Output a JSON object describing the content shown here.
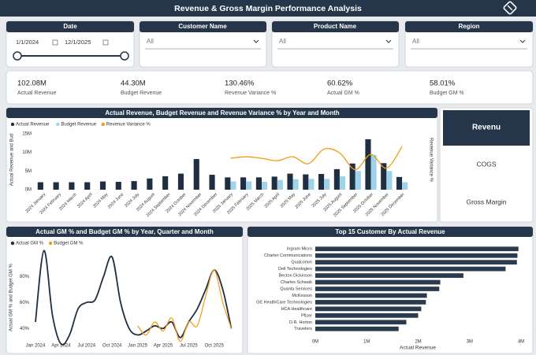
{
  "header": {
    "title": "Revenue & Gross Margin Performance Analysis"
  },
  "filters": [
    {
      "title": "Date",
      "from": "1/1/2024",
      "to": "12/1/2025"
    },
    {
      "title": "Customer Name",
      "value": "All"
    },
    {
      "title": "Product Name",
      "value": "All"
    },
    {
      "title": "Region",
      "value": "All"
    }
  ],
  "kpis": [
    {
      "value": "102.08M",
      "label": "Actual Revenue"
    },
    {
      "value": "44.30M",
      "label": "Budget Revenue"
    },
    {
      "value": "130.46%",
      "label": "Revenue Variance %"
    },
    {
      "value": "60.62%",
      "label": "Actual GM %"
    },
    {
      "value": "58.01%",
      "label": "Budget GM %"
    }
  ],
  "buttons": [
    "Revenu",
    "COGS",
    "Gross Margin"
  ],
  "chart_data": [
    {
      "type": "combo",
      "title": "Actual Revenue, Budget Revenue and Revenue Variance % by Year and Month",
      "y_label": "Actual Revenue and Bud",
      "y2_label": "Revenue Variance %",
      "categories": [
        "2024 January",
        "2024 February",
        "2024 March",
        "2024 April",
        "2024 May",
        "2024 June",
        "2024 July",
        "2024 August",
        "2024 September",
        "2024 October",
        "2024 November",
        "2024 December",
        "2025 January",
        "2025 February",
        "2025 March",
        "2025 April",
        "2025 May",
        "2025 June",
        "2025 July",
        "2025 August",
        "2025 September",
        "2025 October",
        "2025 November",
        "2025 December"
      ],
      "ylim": [
        0,
        16000000
      ],
      "yticks": [
        {
          "value": 0,
          "label": "0M"
        },
        {
          "value": 5000000,
          "label": "5M"
        },
        {
          "value": 10000000,
          "label": "10M"
        },
        {
          "value": 15000000,
          "label": "15M"
        }
      ],
      "y2lim": [
        0,
        200
      ],
      "series": [
        {
          "name": "Actual Revenue",
          "mark": "bar",
          "color": "#1f2e40",
          "values": [
            2000000,
            2000000,
            2000000,
            2000000,
            2200000,
            2100000,
            2300000,
            3000000,
            3600000,
            4300000,
            8200000,
            4000000,
            3300000,
            3300000,
            3300000,
            3500000,
            4300000,
            4100000,
            4200000,
            5500000,
            7000000,
            13500000,
            7100000,
            3400000
          ]
        },
        {
          "name": "Budget Revenue",
          "mark": "bar",
          "color": "#9fd3ea",
          "values": [
            null,
            null,
            null,
            null,
            null,
            null,
            null,
            null,
            null,
            null,
            null,
            null,
            2200000,
            2200000,
            2100000,
            2600000,
            2800000,
            2900000,
            2900000,
            3600000,
            5000000,
            9300000,
            5000000,
            2000000
          ]
        },
        {
          "name": "Revenue Variance %",
          "mark": "line",
          "axis": "y2",
          "color": "#f39c12",
          "values": [
            null,
            null,
            null,
            null,
            null,
            null,
            null,
            null,
            null,
            null,
            null,
            null,
            105,
            110,
            105,
            97,
            110,
            87,
            136,
            123,
            67,
            118,
            72,
            144
          ]
        }
      ]
    },
    {
      "type": "line",
      "title": "Actual GM % and Budget GM % by Year, Quarter and Month",
      "y_label": "Actual GM % and Budget GM %",
      "categories": [
        "Jan 2024",
        null,
        null,
        "Apr 2024",
        null,
        null,
        "Jul 2024",
        null,
        null,
        "Oct 2024",
        null,
        null,
        "Jan 2025",
        null,
        null,
        "Apr 2025",
        null,
        null,
        "Jul 2025",
        null,
        null,
        "Oct 2025",
        null,
        null
      ],
      "ylim": [
        25,
        105
      ],
      "yticks": [
        {
          "value": 40,
          "label": "40%"
        },
        {
          "value": 60,
          "label": "60%"
        },
        {
          "value": 80,
          "label": "80%"
        }
      ],
      "series": [
        {
          "name": "Actual GM %",
          "color": "#1f2e40",
          "values": [
            45,
            100,
            50,
            28,
            35,
            55,
            60,
            62,
            80,
            95,
            60,
            40,
            35,
            38,
            42,
            40,
            45,
            33,
            45,
            55,
            70,
            85,
            70,
            40
          ]
        },
        {
          "name": "Budget GM %",
          "color": "#f39c12",
          "values": [
            null,
            null,
            null,
            null,
            null,
            null,
            null,
            null,
            null,
            null,
            null,
            null,
            42,
            35,
            45,
            38,
            48,
            30,
            45,
            42,
            65,
            85,
            60,
            40
          ]
        }
      ]
    },
    {
      "type": "hbar",
      "title": "Top 15 Customer By Actual Revenue",
      "x_label": "Actual Revenue",
      "color": "#2b3b4f",
      "categories": [
        "Ingram Micro",
        "Charter Communications",
        "Qualcomm",
        "Dell Technologies",
        "Becton Dickinson",
        "Charles Schwab",
        "Quanta Services",
        "McKesson",
        "GE HealthCare Technologies",
        "HCA Healthcare",
        "Pfizer",
        "D.R. Horton",
        "Travelers"
      ],
      "values": [
        3950000,
        3930000,
        3920000,
        3700000,
        2880000,
        2430000,
        2410000,
        2170000,
        2150000,
        2060000,
        2000000,
        1770000,
        1620000
      ],
      "xlim": [
        0,
        4000000
      ],
      "xticks": [
        {
          "value": 0,
          "label": "0M"
        },
        {
          "value": 1000000,
          "label": "1M"
        },
        {
          "value": 2000000,
          "label": "2M"
        },
        {
          "value": 3000000,
          "label": "3M"
        },
        {
          "value": 4000000,
          "label": "4M"
        }
      ]
    }
  ]
}
